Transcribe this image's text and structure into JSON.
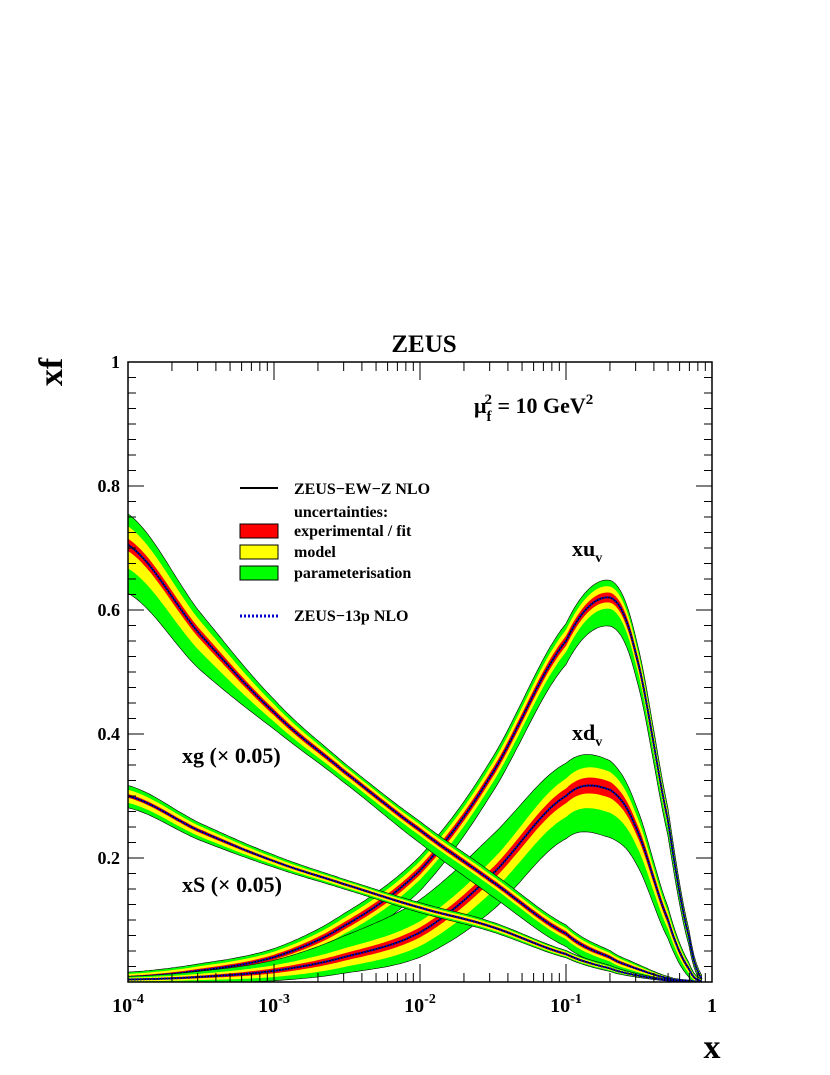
{
  "chart_data": {
    "type": "line",
    "title": "ZEUS",
    "ylabel": "xf",
    "xlabel": "x",
    "x_scale": "log",
    "xlim": [
      0.0001,
      1
    ],
    "ylim": [
      0,
      1
    ],
    "scale_label": {
      "prefix": "μ",
      "sub": "f",
      "sup": "2",
      "rest": " = 10 GeV",
      "sup2": "2"
    },
    "x_ticks": [
      {
        "value": 0.0001,
        "base": "10",
        "exp": "-4"
      },
      {
        "value": 0.001,
        "base": "10",
        "exp": "-3"
      },
      {
        "value": 0.01,
        "base": "10",
        "exp": "-2"
      },
      {
        "value": 0.1,
        "base": "10",
        "exp": "-1"
      },
      {
        "value": 1,
        "base": "1",
        "exp": ""
      }
    ],
    "y_ticks": [
      {
        "value": 0.2,
        "label": "0.2"
      },
      {
        "value": 0.4,
        "label": "0.4"
      },
      {
        "value": 0.6,
        "label": "0.6"
      },
      {
        "value": 0.8,
        "label": "0.8"
      },
      {
        "value": 1.0,
        "label": "1"
      }
    ],
    "legend": {
      "placement": "upper-left",
      "entries": [
        {
          "kind": "line",
          "label": "ZEUS−EW−Z NLO",
          "color": "#000000"
        },
        {
          "kind": "text",
          "label": "uncertainties:"
        },
        {
          "kind": "box",
          "label": "experimental / fit",
          "color": "#ff0000"
        },
        {
          "kind": "box",
          "label": "model",
          "color": "#ffff00"
        },
        {
          "kind": "box",
          "label": "parameterisation",
          "color": "#00ff00"
        },
        {
          "kind": "dotted",
          "label": "ZEUS−13p NLO",
          "color": "#0000cc"
        }
      ]
    },
    "annotations": [
      {
        "id": "xuv",
        "text": "xu",
        "sub": "v"
      },
      {
        "id": "xdv",
        "text": "xd",
        "sub": "v"
      },
      {
        "id": "xg",
        "text": "xg (× 0.05)"
      },
      {
        "id": "xs",
        "text": "xS (× 0.05)"
      }
    ],
    "colors": {
      "exp": "#ff0000",
      "model": "#ffff00",
      "param": "#00ff00",
      "central": "#000000",
      "alt": "#0000cc"
    },
    "x": [
      0.0001,
      0.0003,
      0.001,
      0.003,
      0.01,
      0.03,
      0.1,
      0.2,
      0.3,
      0.5,
      0.7,
      0.85
    ],
    "series": [
      {
        "name": "xu",
        "central": [
          0.008,
          0.018,
          0.04,
          0.09,
          0.18,
          0.33,
          0.55,
          0.62,
          0.53,
          0.26,
          0.07,
          0.005
        ],
        "exp": [
          0.002,
          0.003,
          0.004,
          0.006,
          0.007,
          0.007,
          0.008,
          0.008,
          0.008,
          0.006,
          0.004,
          0.002
        ],
        "model_up": [
          0.003,
          0.004,
          0.005,
          0.007,
          0.008,
          0.009,
          0.01,
          0.01,
          0.009,
          0.007,
          0.004,
          0.002
        ],
        "model_dn": [
          0.003,
          0.004,
          0.005,
          0.007,
          0.008,
          0.009,
          0.01,
          0.01,
          0.009,
          0.007,
          0.004,
          0.002
        ],
        "param_up": [
          0.003,
          0.004,
          0.005,
          0.007,
          0.008,
          0.009,
          0.01,
          0.01,
          0.009,
          0.007,
          0.004,
          0.002
        ],
        "param_dn": [
          0.004,
          0.008,
          0.015,
          0.02,
          0.018,
          0.015,
          0.02,
          0.028,
          0.02,
          0.012,
          0.006,
          0.002
        ],
        "alt": [
          0.008,
          0.018,
          0.04,
          0.09,
          0.18,
          0.33,
          0.55,
          0.62,
          0.53,
          0.26,
          0.07,
          0.005
        ]
      },
      {
        "name": "xd",
        "central": [
          0.004,
          0.008,
          0.018,
          0.04,
          0.08,
          0.17,
          0.3,
          0.31,
          0.25,
          0.1,
          0.02,
          0.001
        ],
        "exp": [
          0.001,
          0.002,
          0.004,
          0.006,
          0.008,
          0.01,
          0.012,
          0.013,
          0.01,
          0.006,
          0.003,
          0.001
        ],
        "model_up": [
          0.002,
          0.003,
          0.005,
          0.008,
          0.01,
          0.013,
          0.016,
          0.016,
          0.012,
          0.007,
          0.003,
          0.001
        ],
        "model_dn": [
          0.002,
          0.003,
          0.006,
          0.01,
          0.014,
          0.018,
          0.022,
          0.024,
          0.018,
          0.009,
          0.004,
          0.001
        ],
        "param_up": [
          0.002,
          0.004,
          0.008,
          0.02,
          0.035,
          0.04,
          0.025,
          0.018,
          0.014,
          0.008,
          0.004,
          0.001
        ],
        "param_dn": [
          0.002,
          0.004,
          0.006,
          0.01,
          0.018,
          0.03,
          0.035,
          0.04,
          0.03,
          0.015,
          0.006,
          0.001
        ],
        "alt": [
          0.004,
          0.008,
          0.018,
          0.04,
          0.08,
          0.17,
          0.3,
          0.31,
          0.25,
          0.1,
          0.02,
          0.001
        ]
      },
      {
        "name": "xg (× 0.05)",
        "central": [
          0.705,
          0.565,
          0.435,
          0.34,
          0.245,
          0.165,
          0.078,
          0.04,
          0.022,
          0.006,
          0.0015,
          0.0002
        ],
        "exp": [
          0.01,
          0.008,
          0.005,
          0.004,
          0.004,
          0.004,
          0.004,
          0.003,
          0.002,
          0.001,
          0.0005,
          0.0002
        ],
        "model_up": [
          0.02,
          0.014,
          0.008,
          0.005,
          0.005,
          0.005,
          0.005,
          0.004,
          0.003,
          0.001,
          0.0005,
          0.0002
        ],
        "model_dn": [
          0.028,
          0.02,
          0.01,
          0.006,
          0.005,
          0.005,
          0.005,
          0.004,
          0.003,
          0.001,
          0.0005,
          0.0002
        ],
        "param_up": [
          0.02,
          0.014,
          0.008,
          0.005,
          0.005,
          0.005,
          0.005,
          0.004,
          0.003,
          0.001,
          0.0005,
          0.0002
        ],
        "param_dn": [
          0.04,
          0.03,
          0.012,
          0.008,
          0.012,
          0.015,
          0.012,
          0.008,
          0.005,
          0.002,
          0.0008,
          0.0002
        ],
        "alt": [
          0.705,
          0.565,
          0.435,
          0.34,
          0.245,
          0.165,
          0.078,
          0.04,
          0.022,
          0.006,
          0.0015,
          0.0002
        ]
      },
      {
        "name": "xS (× 0.05)",
        "central": [
          0.3,
          0.245,
          0.195,
          0.158,
          0.12,
          0.09,
          0.045,
          0.022,
          0.011,
          0.003,
          0.0007,
          0.0001
        ],
        "exp": [
          0.003,
          0.003,
          0.002,
          0.002,
          0.002,
          0.002,
          0.002,
          0.001,
          0.001,
          0.0005,
          0.0002,
          0.0001
        ],
        "model_up": [
          0.007,
          0.005,
          0.004,
          0.003,
          0.003,
          0.003,
          0.002,
          0.002,
          0.001,
          0.0005,
          0.0002,
          0.0001
        ],
        "model_dn": [
          0.008,
          0.006,
          0.004,
          0.003,
          0.003,
          0.003,
          0.002,
          0.002,
          0.001,
          0.0005,
          0.0002,
          0.0001
        ],
        "param_up": [
          0.007,
          0.005,
          0.004,
          0.003,
          0.003,
          0.003,
          0.002,
          0.002,
          0.001,
          0.0005,
          0.0002,
          0.0001
        ],
        "param_dn": [
          0.008,
          0.006,
          0.004,
          0.003,
          0.003,
          0.003,
          0.002,
          0.002,
          0.001,
          0.0005,
          0.0002,
          0.0001
        ],
        "alt": [
          0.3,
          0.245,
          0.195,
          0.158,
          0.12,
          0.09,
          0.045,
          0.022,
          0.011,
          0.003,
          0.0007,
          0.0001
        ]
      }
    ]
  }
}
